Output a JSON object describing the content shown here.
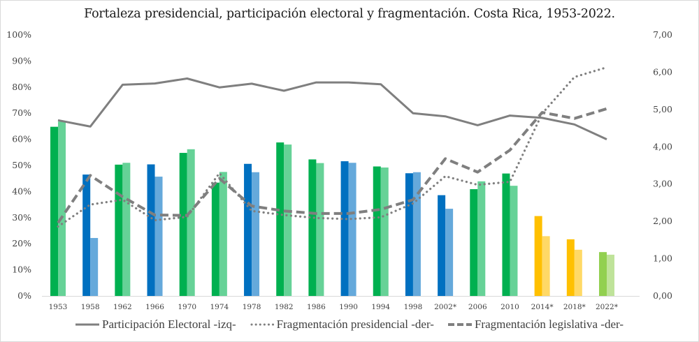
{
  "chart_data": {
    "type": "bar",
    "title": "Fortaleza presidencial, participación electoral y fragmentación. Costa Rica, 1953-2022.",
    "xlabel": "",
    "ylabel": "",
    "categories": [
      "1953",
      "1958",
      "1962",
      "1966",
      "1970",
      "1974",
      "1978",
      "1982",
      "1986",
      "1990",
      "1994",
      "1998",
      "2002*",
      "2006",
      "2010",
      "2014*",
      "2018*",
      "2022*"
    ],
    "y_left": {
      "ylim": [
        0,
        100
      ],
      "ticks": [
        "0%",
        "10%",
        "20%",
        "30%",
        "40%",
        "50%",
        "60%",
        "70%",
        "80%",
        "90%",
        "100%"
      ],
      "tick_values": [
        0,
        10,
        20,
        30,
        40,
        50,
        60,
        70,
        80,
        90,
        100
      ]
    },
    "y_right": {
      "ylim": [
        0,
        7
      ],
      "ticks": [
        "0,00",
        "1,00",
        "2,00",
        "3,00",
        "4,00",
        "5,00",
        "6,00",
        "7,00"
      ],
      "tick_values": [
        0,
        1,
        2,
        3,
        4,
        5,
        6,
        7
      ]
    },
    "grid": false,
    "legend_position": "bottom",
    "bar_pairs": {
      "first_bar_values": [
        64.8,
        46.5,
        50.3,
        50.4,
        54.8,
        43.4,
        50.6,
        58.8,
        52.3,
        51.6,
        49.6,
        47.0,
        38.6,
        40.9,
        46.9,
        30.6,
        21.7,
        16.8
      ],
      "second_bar_values": [
        66.8,
        22.2,
        51.0,
        45.7,
        56.2,
        47.5,
        47.4,
        58.0,
        50.9,
        51.0,
        49.2,
        47.4,
        33.4,
        43.9,
        42.2,
        22.9,
        17.7,
        15.8
      ],
      "color_groups": [
        "green",
        "blue",
        "green",
        "blue",
        "green",
        "green",
        "blue",
        "green",
        "green",
        "blue",
        "green",
        "blue",
        "blue",
        "green",
        "green",
        "yellow",
        "yellow",
        "lightgreen"
      ],
      "axis": "left"
    },
    "colors": {
      "green": {
        "dark": "#00b050",
        "light": "#66d297"
      },
      "blue": {
        "dark": "#0070c0",
        "light": "#65a9db"
      },
      "yellow": {
        "dark": "#ffc000",
        "light": "#ffd966"
      },
      "lightgreen": {
        "dark": "#92d050",
        "light": "#bfe39a"
      },
      "line": "#7f7f7f",
      "axis": "#d9d9d9"
    },
    "series": [
      {
        "name": "Participación Electoral -izq-",
        "style": "solid",
        "axis": "left",
        "values": [
          67.3,
          64.9,
          80.9,
          81.4,
          83.3,
          79.9,
          81.3,
          78.6,
          81.8,
          81.8,
          81.1,
          70.0,
          68.8,
          65.4,
          69.1,
          68.2,
          65.7,
          60.0
        ]
      },
      {
        "name": "Fragmentación presidencial -der-",
        "style": "dotted",
        "axis": "right",
        "values": [
          1.86,
          2.45,
          2.58,
          2.03,
          2.12,
          3.29,
          2.28,
          2.17,
          2.09,
          2.06,
          2.11,
          2.48,
          3.21,
          2.98,
          3.06,
          4.89,
          5.87,
          6.13
        ]
      },
      {
        "name": "Fragmentación legislativa -der-",
        "style": "dashed",
        "axis": "right",
        "values": [
          1.96,
          3.23,
          2.66,
          2.17,
          2.16,
          3.15,
          2.41,
          2.28,
          2.21,
          2.21,
          2.32,
          2.58,
          3.68,
          3.32,
          3.91,
          4.92,
          4.76,
          5.02
        ]
      }
    ]
  }
}
